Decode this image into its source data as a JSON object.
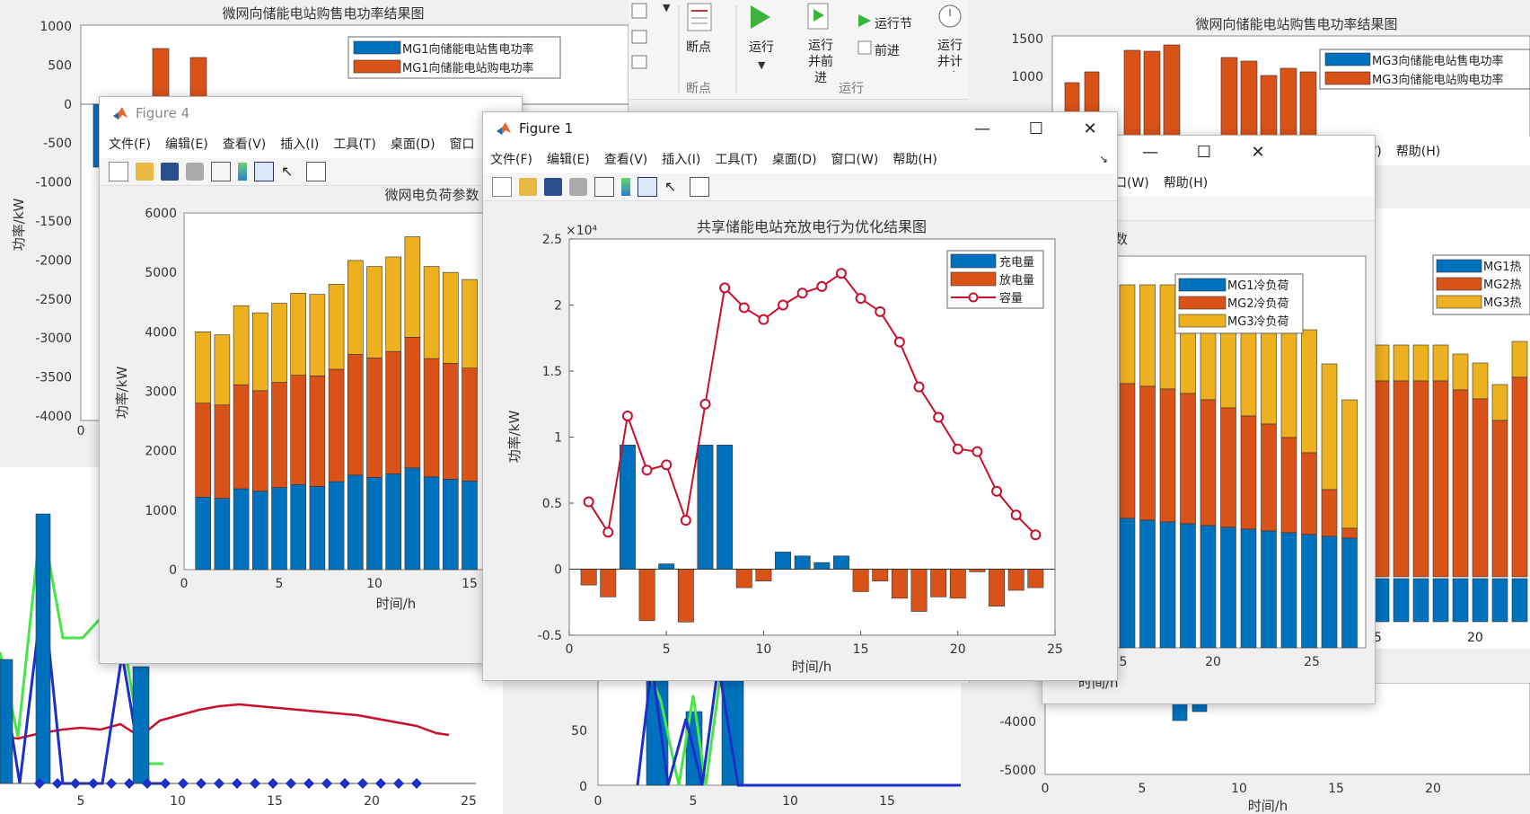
{
  "ribbon": {
    "items": [
      {
        "label": "断点",
        "sub": "断点"
      },
      {
        "label": "运行"
      },
      {
        "label": "运行并前进"
      },
      {
        "label": "运行节"
      },
      {
        "label": "前进"
      },
      {
        "label": "运行并计时"
      }
    ],
    "group_label": "运行"
  },
  "figures": {
    "bg_topleft": {
      "title": "微网向储能电站购售电功率结果图",
      "yticks": [
        "1000",
        "500",
        "0",
        "-500",
        "-1000",
        "-1500",
        "-2000",
        "-2500",
        "-3000",
        "-3500",
        "-4000"
      ],
      "ylabel": "功率/kW",
      "legend": [
        "MG1向储能电站售电功率",
        "MG1向储能电站购电功率"
      ],
      "xtick_first": "0"
    },
    "bg_topright": {
      "title": "微网向储能电站购售电功率结果图",
      "yticks": [
        "1500",
        "1000"
      ],
      "legend": [
        "MG3向储能电站售电功率",
        "MG3向储能电站购电功率"
      ]
    },
    "bg_bottomleft": {
      "xticks": [
        "5",
        "10",
        "15",
        "20",
        "25"
      ]
    },
    "bg_bottommid": {
      "yticks": [
        "50",
        "0"
      ],
      "xticks": [
        "0",
        "5",
        "10",
        "15"
      ]
    },
    "bg_bottomright": {
      "yticks": [
        "-4000",
        "-5000"
      ],
      "xticks": [
        "0",
        "5",
        "10",
        "15",
        "20"
      ],
      "xlabel": "时间/h"
    },
    "figure4": {
      "window_title": "Figure 4",
      "menu": [
        "文件(F)",
        "编辑(E)",
        "查看(V)",
        "插入(I)",
        "工具(T)",
        "桌面(D)",
        "窗口"
      ],
      "title": "微网电负荷参数",
      "ylabel": "功率/kW",
      "xlabel": "时间/h",
      "yticks": [
        "6000",
        "5000",
        "4000",
        "3000",
        "2000",
        "1000",
        "0"
      ],
      "xticks": [
        "0",
        "5",
        "10",
        "15"
      ]
    },
    "cooling": {
      "menu": [
        "口(W)",
        "帮助(H)"
      ],
      "title_fragment": "数",
      "legend": [
        "MG1冷负荷",
        "MG2冷负荷",
        "MG3冷负荷"
      ],
      "xticks": [
        "5",
        "20",
        "25"
      ],
      "xlabel": "时间/h"
    },
    "heat": {
      "menu": [
        "口(W)",
        "帮助(H)"
      ],
      "title_fragment": "数",
      "legend": [
        "MG1热",
        "MG2热",
        "MG3热"
      ],
      "xticks": [
        "5",
        "20"
      ]
    },
    "figure1": {
      "window_title": "Figure 1",
      "menu": [
        "文件(F)",
        "编辑(E)",
        "查看(V)",
        "插入(I)",
        "工具(T)",
        "桌面(D)",
        "窗口(W)",
        "帮助(H)"
      ]
    }
  },
  "chart_data": [
    {
      "type": "bar",
      "id": "figure1",
      "title": "共享储能电站充放电行为优化结果图",
      "xlabel": "时间/h",
      "ylabel": "功率/kW",
      "y_exponent": "×10⁴",
      "xlim": [
        0,
        25
      ],
      "ylim": [
        -0.5,
        2.5
      ],
      "xticks": [
        "0",
        "5",
        "10",
        "15",
        "20",
        "25"
      ],
      "yticks": [
        "2.5",
        "2",
        "1.5",
        "1",
        "0.5",
        "0",
        "-0.5"
      ],
      "legend_position": "top-right",
      "x": [
        1,
        2,
        3,
        4,
        5,
        6,
        7,
        8,
        9,
        10,
        11,
        12,
        13,
        14,
        15,
        16,
        17,
        18,
        19,
        20,
        21,
        22,
        23,
        24
      ],
      "series": [
        {
          "name": "充电量",
          "type": "bar",
          "color": "#0072BD",
          "values": [
            0,
            0,
            0.94,
            0,
            0.04,
            0,
            0.94,
            0.94,
            0,
            0,
            0.13,
            0.1,
            0.05,
            0.1,
            0,
            0,
            0,
            0,
            0,
            0,
            0,
            0,
            0,
            0
          ]
        },
        {
          "name": "放电量",
          "type": "bar",
          "color": "#D95319",
          "values": [
            -0.12,
            -0.21,
            0,
            -0.39,
            0,
            -0.4,
            0,
            0,
            -0.14,
            -0.09,
            0,
            0,
            0,
            0,
            -0.17,
            -0.09,
            -0.22,
            -0.32,
            -0.21,
            -0.22,
            -0.02,
            -0.28,
            -0.16,
            -0.14
          ]
        },
        {
          "name": "容量",
          "type": "line",
          "color": "#C8102E",
          "values": [
            0.51,
            0.28,
            1.16,
            0.75,
            0.79,
            0.37,
            1.25,
            2.13,
            1.98,
            1.89,
            2.0,
            2.09,
            2.14,
            2.24,
            2.05,
            1.95,
            1.72,
            1.38,
            1.15,
            0.91,
            0.89,
            0.59,
            0.41,
            0.26
          ]
        }
      ]
    },
    {
      "type": "bar",
      "id": "figure4",
      "stacked": true,
      "title": "微网电负荷参数",
      "xlabel": "时间/h",
      "ylabel": "功率/kW",
      "ylim": [
        0,
        6000
      ],
      "x": [
        1,
        2,
        3,
        4,
        5,
        6,
        7,
        8,
        9,
        10,
        11,
        12,
        13,
        14,
        15
      ],
      "series": [
        {
          "color": "#0072BD",
          "values": [
            1220,
            1200,
            1360,
            1320,
            1380,
            1430,
            1400,
            1480,
            1590,
            1550,
            1610,
            1710,
            1560,
            1520,
            1490
          ]
        },
        {
          "color": "#D95319",
          "values": [
            1580,
            1570,
            1750,
            1690,
            1770,
            1840,
            1860,
            1890,
            2030,
            2010,
            2060,
            2200,
            1990,
            1950,
            1900
          ]
        },
        {
          "color": "#EDB120",
          "values": [
            1200,
            1180,
            1330,
            1310,
            1330,
            1380,
            1370,
            1430,
            1580,
            1540,
            1590,
            1690,
            1550,
            1530,
            1490
          ]
        }
      ]
    }
  ]
}
